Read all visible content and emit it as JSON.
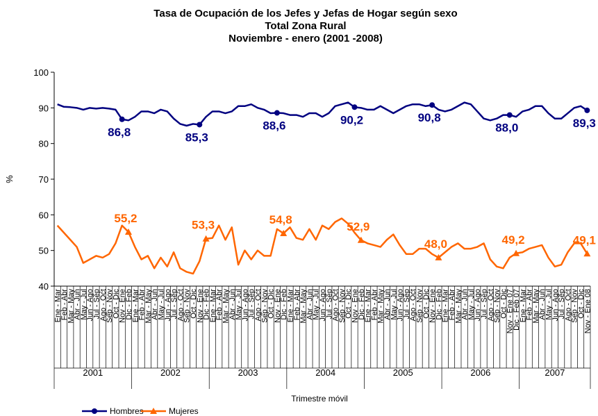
{
  "chart_data": {
    "type": "line",
    "title": [
      "Tasa de Ocupación de los Jefes y Jefas de Hogar según sexo",
      "Total Zona Rural",
      "Noviembre  - enero (2001 -2008)"
    ],
    "y_label": "%",
    "x_label": "Trimestre móvil",
    "groups": [
      "2001",
      "2002",
      "2003",
      "2004",
      "2005",
      "2006",
      "2007"
    ],
    "categories": [
      "Ene - Mar",
      "Feb - Abr",
      "Mar - May",
      "Abr - Jun",
      "May - Jul",
      "Jun - Ago",
      "Jul - Sep",
      "Ago - Oct",
      "Sep - Nov",
      "Oct - Dic",
      "Nov - Ene",
      "Dic - Feb",
      "Ene - Mar",
      "Feb - Abr",
      "Mar - May",
      "Abr - Jun",
      "May - Jul",
      "Jun - Ago",
      "Jul - Sep",
      "Ago - Oct",
      "Sep - Nov",
      "Oct - Dic",
      "Nov - Ene",
      "Dic - Feb",
      "Ene - Mar",
      "Feb - Abr",
      "Mar - May",
      "Abr - Jun",
      "May - Jul",
      "Jun - Ago",
      "Jul - Sep",
      "Ago - Oct",
      "Sep - Nov",
      "Oct - Dic",
      "Nov - Ene",
      "Dic - Feb",
      "Ene - Mar",
      "Feb - Abr",
      "Mar - May",
      "Abr - Jun",
      "May - Jul",
      "Jun - Ago",
      "Jul - Sep",
      "Ago - Oct",
      "Sep - Nov",
      "Oct - Dic",
      "Nov - Ene",
      "Dic - Feb",
      "Ene - Mar",
      "Feb - Abr",
      "Mar - May",
      "Abr - Jun",
      "May - Jul",
      "Jun - Ago",
      "Jul - Sep",
      "Ago - Oct",
      "Sep - Nov",
      "Oct - Dic",
      "Nov - Ene",
      "Dic - Feb",
      "Ene - Mar",
      "Feb - Abr",
      "Mar - May",
      "Abr - Jun",
      "May - Jul",
      "Jun - Ago",
      "Jul - Sep",
      "Ago - Oct",
      "Sep - Nov",
      "Oct - Dic",
      "Nov - Ene 07",
      "Dic - Feb 07",
      "Ene - Mar",
      "Feb - Abr",
      "Mar - May",
      "Abr - Jun",
      "May - Jul",
      "Jun - Ago",
      "Jul - Sep",
      "Ago - Oct",
      "Sep - Nov",
      "Oct - Dic",
      "Nov - Ene 08"
    ],
    "series": [
      {
        "name": "Hombres",
        "color": "#000080",
        "marker": "circle",
        "label_position": "below",
        "values": [
          91,
          90.3,
          90.2,
          90,
          89.5,
          90,
          89.8,
          90,
          89.8,
          89.5,
          86.8,
          86.5,
          87.5,
          89,
          89,
          88.5,
          89.5,
          89,
          87,
          85.5,
          85,
          85.5,
          85.3,
          87.5,
          89,
          89,
          88.5,
          89,
          90.5,
          90.5,
          91,
          90,
          89.5,
          88.5,
          88.6,
          88.5,
          88,
          88,
          87.5,
          88.5,
          88.5,
          87.5,
          88.5,
          90.5,
          91,
          91.5,
          90.2,
          90,
          89.5,
          89.5,
          90.5,
          89.5,
          88.5,
          89.5,
          90.5,
          91,
          91,
          90.5,
          90.8,
          89.5,
          89,
          89.5,
          90.5,
          91.5,
          91,
          89,
          87,
          86.5,
          87,
          88,
          88,
          87.5,
          89,
          89.5,
          90.5,
          90.5,
          88.5,
          87,
          87,
          88.5,
          90,
          90.5,
          89.3
        ],
        "value_labels": [
          null,
          null,
          null,
          null,
          null,
          null,
          null,
          null,
          null,
          null,
          "86,8",
          null,
          null,
          null,
          null,
          null,
          null,
          null,
          null,
          null,
          null,
          null,
          "85,3",
          null,
          null,
          null,
          null,
          null,
          null,
          null,
          null,
          null,
          null,
          null,
          "88,6",
          null,
          null,
          null,
          null,
          null,
          null,
          null,
          null,
          null,
          null,
          null,
          "90,2",
          null,
          null,
          null,
          null,
          null,
          null,
          null,
          null,
          null,
          null,
          null,
          "90,8",
          null,
          null,
          null,
          null,
          null,
          null,
          null,
          null,
          null,
          null,
          null,
          "88,0",
          null,
          null,
          null,
          null,
          null,
          null,
          null,
          null,
          null,
          null,
          null,
          "89,3"
        ]
      },
      {
        "name": "Mujeres",
        "color": "#FF6600",
        "marker": "triangle",
        "label_position": "above",
        "values": [
          57,
          55,
          53,
          51,
          46.5,
          47.5,
          48.5,
          48,
          49,
          52,
          57,
          55.2,
          51,
          47.5,
          48.5,
          45,
          48,
          45.5,
          49.5,
          45,
          44,
          43.5,
          47,
          53.3,
          53.5,
          57,
          53,
          56.5,
          46,
          50,
          47.5,
          50,
          48.5,
          48.5,
          56,
          54.8,
          56.5,
          53.5,
          53,
          56,
          53,
          57,
          56,
          58,
          59,
          57.5,
          55,
          52.9,
          52,
          51.5,
          51,
          53,
          54.5,
          51.5,
          49,
          49,
          50.5,
          50.5,
          49,
          48,
          49.5,
          51,
          52,
          50.5,
          50.5,
          51,
          52,
          47.5,
          45.5,
          45,
          48,
          49.2,
          49.5,
          50.5,
          51,
          51.5,
          48,
          45.5,
          46,
          49.5,
          52,
          52,
          49.1
        ],
        "value_labels": [
          null,
          null,
          null,
          null,
          null,
          null,
          null,
          null,
          null,
          null,
          null,
          "55,2",
          null,
          null,
          null,
          null,
          null,
          null,
          null,
          null,
          null,
          null,
          null,
          "53,3",
          null,
          null,
          null,
          null,
          null,
          null,
          null,
          null,
          null,
          null,
          null,
          "54,8",
          null,
          null,
          null,
          null,
          null,
          null,
          null,
          null,
          null,
          null,
          null,
          "52,9",
          null,
          null,
          null,
          null,
          null,
          null,
          null,
          null,
          null,
          null,
          null,
          "48,0",
          null,
          null,
          null,
          null,
          null,
          null,
          null,
          null,
          null,
          null,
          null,
          "49,2",
          null,
          null,
          null,
          null,
          null,
          null,
          null,
          null,
          null,
          null,
          "49,1"
        ]
      }
    ],
    "ylim": [
      40,
      100
    ],
    "yticks": [
      40,
      50,
      60,
      70,
      80,
      90,
      100
    ],
    "grid": false,
    "legend": "bottom-left"
  }
}
